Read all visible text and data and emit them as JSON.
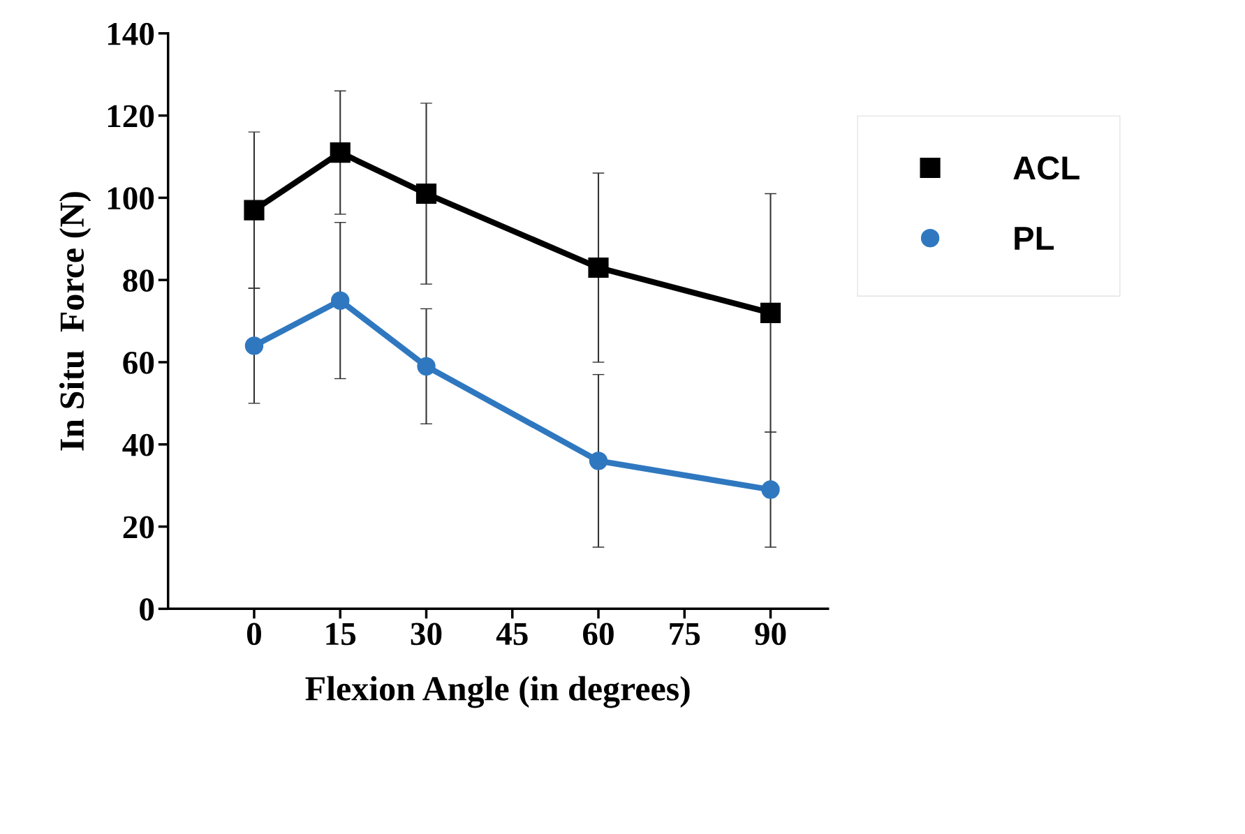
{
  "chart_data": {
    "type": "line",
    "xlabel": "Flexion Angle (in degrees)",
    "ylabel": "In Situ  Force (N)",
    "x": [
      0,
      15,
      30,
      60,
      90
    ],
    "series": [
      {
        "name": "ACL",
        "color": "#000000",
        "marker": "square",
        "values": [
          97,
          111,
          101,
          83,
          72
        ],
        "errors": [
          19,
          15,
          22,
          23,
          29
        ]
      },
      {
        "name": "PL",
        "color": "#2f78c0",
        "marker": "circle",
        "values": [
          64,
          75,
          59,
          36,
          29
        ],
        "errors": [
          14,
          19,
          14,
          21,
          14
        ]
      }
    ],
    "xlim": [
      -15,
      100
    ],
    "xticks": [
      0,
      15,
      30,
      45,
      60,
      75,
      90
    ],
    "ylim": [
      0,
      140
    ],
    "yticks": [
      0,
      20,
      40,
      60,
      80,
      100,
      120,
      140
    ],
    "grid": false,
    "legend": "right",
    "line_style": "solid"
  }
}
